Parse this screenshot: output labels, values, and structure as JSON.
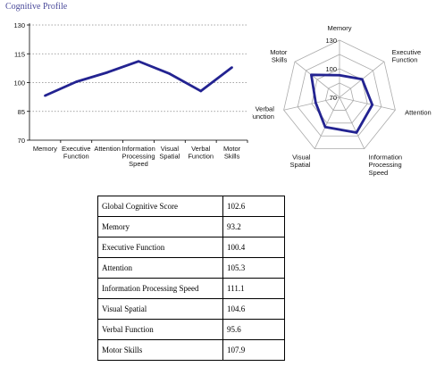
{
  "title": "Cognitive Profile",
  "colors": {
    "series": "#232391",
    "grid": "#888888",
    "ring": "#aaaaaa",
    "title": "#4a4a9a"
  },
  "chart_data": [
    {
      "type": "line",
      "categories": [
        "Memory",
        "Executive\nFunction",
        "Attention",
        "Information\nProcessing\nSpeed",
        "Visual\nSpatial",
        "Verbal\nFunction",
        "Motor\nSkills"
      ],
      "values": [
        93.2,
        100.4,
        105.3,
        111.1,
        104.6,
        95.6,
        107.9
      ],
      "ylim": [
        70,
        130
      ],
      "yticks": [
        "70",
        "85",
        "100",
        "115",
        "130"
      ],
      "grid": true
    },
    {
      "type": "radar",
      "categories": [
        "Memory",
        "Executive\nFunction",
        "Attention",
        "Information\nProcessing\nSpeed",
        "Visual\nSpatial",
        "Verbal\nFunction",
        "Motor\nSkills"
      ],
      "values": [
        93.2,
        100.4,
        105.3,
        111.1,
        104.6,
        95.6,
        107.9
      ],
      "range": [
        70,
        130
      ],
      "ring_labels": [
        "70",
        "100",
        "130"
      ]
    }
  ],
  "table": [
    [
      "Global Cognitive Score",
      "102.6"
    ],
    [
      "Memory",
      "93.2"
    ],
    [
      "Executive Function",
      "100.4"
    ],
    [
      "Attention",
      "105.3"
    ],
    [
      "Information Processing Speed",
      "111.1"
    ],
    [
      "Visual Spatial",
      "104.6"
    ],
    [
      "Verbal Function",
      "95.6"
    ],
    [
      "Motor Skills",
      "107.9"
    ]
  ]
}
